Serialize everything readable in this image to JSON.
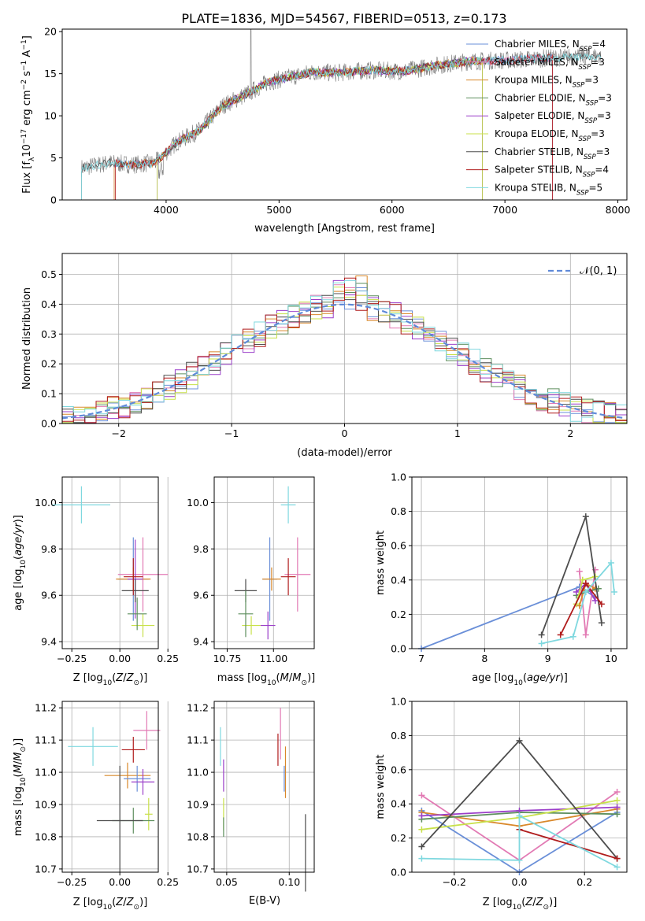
{
  "title": "PLATE=1836, MJD=54567, FIBERID=0513, z=0.173",
  "colors": {
    "chabrier_miles": "#6a8fd8",
    "salpeter_miles": "#e27ab4",
    "kroupa_miles": "#d9882a",
    "chabrier_elodie": "#5e8f5e",
    "salpeter_elodie": "#9b3fc9",
    "kroupa_elodie": "#c8e04a",
    "chabrier_stelib": "#4d4d4d",
    "salpeter_stelib": "#b01c1c",
    "kroupa_stelib": "#7fd8df",
    "spectrum": "#7a7a7a",
    "normal": "#5f8ad9"
  },
  "chart_data": [
    {
      "id": "spectrum",
      "type": "line",
      "xlabel": "wavelength [Angstrom, rest frame]",
      "ylabel": "Flux [fλ10⁻¹⁷ erg cm⁻² s⁻¹ A⁻¹]",
      "xlim": [
        3080,
        8080
      ],
      "ylim": [
        0,
        20.3
      ],
      "xticks": [
        "4000",
        "5000",
        "6000",
        "7000",
        "8000"
      ],
      "yticks": [
        "0",
        "5",
        "10",
        "15",
        "20"
      ],
      "legend_position": "top-right",
      "legend": [
        "Chabrier MILES, N_SSP=4",
        "Salpeter MILES, N_SSP=3",
        "Kroupa MILES, N_SSP=3",
        "Chabrier ELODIE, N_SSP=3",
        "Salpeter ELODIE, N_SSP=3",
        "Kroupa ELODIE, N_SSP=3",
        "Chabrier STELIB, N_SSP=3",
        "Salpeter STELIB, N_SSP=4",
        "Kroupa STELIB, N_SSP=5"
      ],
      "continuum_x": [
        3250,
        3500,
        3700,
        3900,
        4100,
        4300,
        4500,
        4700,
        4900,
        5100,
        5300,
        5500,
        5800,
        6100,
        6400,
        6700,
        7000,
        7300,
        7600,
        7850
      ],
      "continuum_y": [
        3.8,
        4.4,
        4.2,
        4.4,
        6.9,
        8.3,
        11.2,
        12.5,
        14.0,
        14.6,
        15.2,
        15.1,
        15.4,
        15.3,
        16.0,
        16.5,
        16.6,
        16.8,
        17.0,
        17.1
      ],
      "model_edges": {
        "salpeter_stelib": 3550,
        "kroupa_elodie": 3920,
        "chabrier_stelib": 4750,
        "kroupa_miles": 6800,
        "kroupa_elodie_red": 6800,
        "salpeter_stelib_red": 7420
      }
    },
    {
      "id": "residuals",
      "type": "histogram",
      "xlabel": "(data-model)/error",
      "ylabel": "Normed distribution",
      "xlim": [
        -2.5,
        2.5
      ],
      "ylim": [
        0,
        0.57
      ],
      "xticks": [
        "−2",
        "−1",
        "0",
        "1",
        "2"
      ],
      "yticks": [
        "0.0",
        "0.1",
        "0.2",
        "0.3",
        "0.4",
        "0.5"
      ],
      "legend": [
        "𝒩(0, 1)"
      ],
      "legend_position": "top-right",
      "bin_width": 0.1
    },
    {
      "id": "age_vs_Z",
      "type": "errorbar",
      "xlabel": "Z [log₁₀(Z/Z⊙)]",
      "ylabel": "age  [log₁₀(age/yr)]",
      "xlim": [
        -0.3,
        0.2
      ],
      "ylim": [
        9.37,
        10.11
      ],
      "xticks": [
        "−0.25",
        "0.00",
        "0.25"
      ],
      "yticks": [
        "9.4",
        "9.6",
        "9.8",
        "10.0"
      ],
      "points": [
        {
          "series": "kroupa_stelib",
          "x": -0.2,
          "y": 9.99,
          "xerr": 0.15,
          "yerr": 0.08
        },
        {
          "series": "chabrier_miles",
          "x": 0.07,
          "y": 9.67,
          "xerr": 0.08,
          "yerr": 0.18
        },
        {
          "series": "salpeter_miles",
          "x": 0.12,
          "y": 9.69,
          "xerr": 0.13,
          "yerr": 0.16
        },
        {
          "series": "kroupa_miles",
          "x": 0.07,
          "y": 9.67,
          "xerr": 0.09,
          "yerr": 0.05
        },
        {
          "series": "salpeter_elodie",
          "x": 0.08,
          "y": 9.67,
          "xerr": 0.04,
          "yerr": 0.17
        },
        {
          "series": "kroupa_elodie",
          "x": 0.12,
          "y": 9.47,
          "xerr": 0.06,
          "yerr": 0.05
        },
        {
          "series": "chabrier_stelib",
          "x": 0.08,
          "y": 9.62,
          "xerr": 0.07,
          "yerr": 0.05
        },
        {
          "series": "salpeter_stelib",
          "x": 0.07,
          "y": 9.68,
          "xerr": 0.05,
          "yerr": 0.08
        },
        {
          "series": "chabrier_elodie",
          "x": 0.09,
          "y": 9.52,
          "xerr": 0.05,
          "yerr": 0.07
        }
      ]
    },
    {
      "id": "age_vs_mass",
      "type": "errorbar",
      "xlabel": "mass [log₁₀(M/M⊙)]",
      "ylabel": "",
      "xlim": [
        10.68,
        11.22
      ],
      "ylim": [
        9.37,
        10.11
      ],
      "xticks": [
        "10.75",
        "11.00"
      ],
      "yticks": [
        "9.4",
        "9.6",
        "9.8",
        "10.0"
      ],
      "points": [
        {
          "series": "kroupa_stelib",
          "x": 11.08,
          "y": 9.99,
          "xerr": 0.04,
          "yerr": 0.08
        },
        {
          "series": "chabrier_miles",
          "x": 10.98,
          "y": 9.67,
          "xerr": 0.04,
          "yerr": 0.18
        },
        {
          "series": "salpeter_miles",
          "x": 11.13,
          "y": 9.69,
          "xerr": 0.07,
          "yerr": 0.16
        },
        {
          "series": "kroupa_miles",
          "x": 10.99,
          "y": 9.67,
          "xerr": 0.05,
          "yerr": 0.05
        },
        {
          "series": "salpeter_elodie",
          "x": 10.97,
          "y": 9.47,
          "xerr": 0.04,
          "yerr": 0.06
        },
        {
          "series": "kroupa_elodie",
          "x": 10.88,
          "y": 9.47,
          "xerr": 0.05,
          "yerr": 0.04
        },
        {
          "series": "chabrier_stelib",
          "x": 10.85,
          "y": 9.62,
          "xerr": 0.06,
          "yerr": 0.05
        },
        {
          "series": "salpeter_stelib",
          "x": 11.08,
          "y": 9.68,
          "xerr": 0.04,
          "yerr": 0.08
        },
        {
          "series": "chabrier_elodie",
          "x": 10.85,
          "y": 9.52,
          "xerr": 0.04,
          "yerr": 0.1
        }
      ]
    },
    {
      "id": "weight_vs_age",
      "type": "line",
      "xlabel": "age  [log₁₀(age/yr)]",
      "ylabel": "mass weight",
      "xlim": [
        6.85,
        10.25
      ],
      "ylim": [
        0,
        1.0
      ],
      "xticks": [
        "7",
        "8",
        "9",
        "10"
      ],
      "yticks": [
        "0.0",
        "0.2",
        "0.4",
        "0.6",
        "0.8",
        "1.0"
      ],
      "series": [
        {
          "series": "chabrier_miles",
          "x": [
            7.0,
            9.5,
            9.75
          ],
          "y": [
            0.0,
            0.36,
            0.3
          ]
        },
        {
          "series": "salpeter_miles",
          "x": [
            9.5,
            9.6,
            9.75
          ],
          "y": [
            0.45,
            0.08,
            0.46
          ]
        },
        {
          "series": "kroupa_miles",
          "x": [
            9.5,
            9.6,
            9.75
          ],
          "y": [
            0.25,
            0.38,
            0.35
          ]
        },
        {
          "series": "chabrier_elodie",
          "x": [
            9.45,
            9.6,
            9.8
          ],
          "y": [
            0.31,
            0.33,
            0.35
          ]
        },
        {
          "series": "salpeter_elodie",
          "x": [
            9.45,
            9.6,
            9.75
          ],
          "y": [
            0.33,
            0.38,
            0.28
          ]
        },
        {
          "series": "kroupa_elodie",
          "x": [
            9.45,
            9.55,
            9.75
          ],
          "y": [
            0.26,
            0.4,
            0.42
          ]
        },
        {
          "series": "chabrier_stelib",
          "x": [
            8.9,
            9.6,
            9.85
          ],
          "y": [
            0.08,
            0.77,
            0.15
          ]
        },
        {
          "series": "salpeter_stelib",
          "x": [
            9.2,
            9.6,
            9.85
          ],
          "y": [
            0.08,
            0.38,
            0.26
          ]
        },
        {
          "series": "kroupa_stelib",
          "x": [
            8.9,
            9.4,
            9.6,
            10.0,
            10.05
          ],
          "y": [
            0.03,
            0.07,
            0.33,
            0.5,
            0.33
          ]
        }
      ]
    },
    {
      "id": "mass_vs_Z",
      "type": "errorbar",
      "xlabel": "Z [log₁₀(Z/Z⊙)]",
      "ylabel": "mass [log₁₀(M/M⊙)]",
      "xlim": [
        -0.3,
        0.2
      ],
      "ylim": [
        10.69,
        11.22
      ],
      "xticks": [
        "−0.25",
        "0.00",
        "0.25"
      ],
      "yticks": [
        "10.7",
        "10.8",
        "10.9",
        "11.0",
        "11.1",
        "11.2"
      ],
      "points": [
        {
          "series": "kroupa_stelib",
          "x": -0.14,
          "y": 11.08,
          "xerr": 0.13,
          "yerr": 0.06
        },
        {
          "series": "salpeter_miles",
          "x": 0.14,
          "y": 11.13,
          "xerr": 0.07,
          "yerr": 0.06
        },
        {
          "series": "salpeter_stelib",
          "x": 0.07,
          "y": 11.07,
          "xerr": 0.06,
          "yerr": 0.04
        },
        {
          "series": "kroupa_miles",
          "x": 0.04,
          "y": 10.99,
          "xerr": 0.12,
          "yerr": 0.04
        },
        {
          "series": "chabrier_miles",
          "x": 0.09,
          "y": 10.98,
          "xerr": 0.07,
          "yerr": 0.04
        },
        {
          "series": "salpeter_elodie",
          "x": 0.12,
          "y": 10.97,
          "xerr": 0.06,
          "yerr": 0.04
        },
        {
          "series": "kroupa_elodie",
          "x": 0.15,
          "y": 10.87,
          "xerr": 0.02,
          "yerr": 0.05
        },
        {
          "series": "chabrier_elodie",
          "x": 0.07,
          "y": 10.85,
          "xerr": 0.11,
          "yerr": 0.04
        },
        {
          "series": "chabrier_stelib",
          "x": 0.0,
          "y": 10.85,
          "xerr": 0.12,
          "yerr": 0.17
        }
      ]
    },
    {
      "id": "mass_vs_ebv",
      "type": "errorbar",
      "xlabel": "E(B-V)",
      "ylabel": "",
      "xlim": [
        0.04,
        0.12
      ],
      "ylim": [
        10.69,
        11.22
      ],
      "xticks": [
        "0.05",
        "0.10"
      ],
      "yticks": [
        "10.7",
        "10.8",
        "10.9",
        "11.0",
        "11.1",
        "11.2"
      ],
      "points": [
        {
          "series": "kroupa_stelib",
          "x": 0.045,
          "y": 11.08,
          "xerr": 0,
          "yerr": 0.06
        },
        {
          "series": "salpeter_elodie",
          "x": 0.0475,
          "y": 10.99,
          "xerr": 0,
          "yerr": 0.05
        },
        {
          "series": "kroupa_elodie",
          "x": 0.0475,
          "y": 10.87,
          "xerr": 0,
          "yerr": 0.05
        },
        {
          "series": "chabrier_elodie",
          "x": 0.0475,
          "y": 10.83,
          "xerr": 0,
          "yerr": 0.03
        },
        {
          "series": "salpeter_miles",
          "x": 0.093,
          "y": 11.12,
          "xerr": 0,
          "yerr": 0.08
        },
        {
          "series": "salpeter_stelib",
          "x": 0.091,
          "y": 11.07,
          "xerr": 0,
          "yerr": 0.05
        },
        {
          "series": "kroupa_miles",
          "x": 0.097,
          "y": 11.0,
          "xerr": 0,
          "yerr": 0.08
        },
        {
          "series": "chabrier_miles",
          "x": 0.096,
          "y": 10.98,
          "xerr": 0,
          "yerr": 0.04
        },
        {
          "series": "chabrier_stelib",
          "x": 0.113,
          "y": 10.75,
          "xerr": 0,
          "yerr": 0.12
        }
      ]
    },
    {
      "id": "weight_vs_Z",
      "type": "line",
      "xlabel": "Z [log₁₀(Z/Z⊙)]",
      "ylabel": "mass weight",
      "xlim": [
        -0.33,
        0.33
      ],
      "ylim": [
        0,
        1.0
      ],
      "xticks": [
        "−0.2",
        "0.0",
        "0.2"
      ],
      "yticks": [
        "0.0",
        "0.2",
        "0.4",
        "0.6",
        "0.8",
        "1.0"
      ],
      "series": [
        {
          "series": "chabrier_miles",
          "x": [
            -0.3,
            0.0,
            0.3
          ],
          "y": [
            0.36,
            0.0,
            0.35
          ]
        },
        {
          "series": "salpeter_miles",
          "x": [
            -0.3,
            0.0,
            0.3
          ],
          "y": [
            0.45,
            0.07,
            0.47
          ]
        },
        {
          "series": "kroupa_miles",
          "x": [
            -0.3,
            0.0,
            0.3
          ],
          "y": [
            0.35,
            0.27,
            0.37
          ]
        },
        {
          "series": "chabrier_elodie",
          "x": [
            -0.3,
            0.0,
            0.3
          ],
          "y": [
            0.31,
            0.35,
            0.34
          ]
        },
        {
          "series": "salpeter_elodie",
          "x": [
            -0.3,
            0.0,
            0.3
          ],
          "y": [
            0.33,
            0.36,
            0.38
          ]
        },
        {
          "series": "kroupa_elodie",
          "x": [
            -0.3,
            0.0,
            0.3
          ],
          "y": [
            0.25,
            0.32,
            0.42
          ]
        },
        {
          "series": "chabrier_stelib",
          "x": [
            -0.3,
            0.0,
            0.3
          ],
          "y": [
            0.15,
            0.77,
            0.08
          ]
        },
        {
          "series": "salpeter_stelib",
          "x": [
            0.0,
            0.3
          ],
          "y": [
            0.25,
            0.08
          ]
        },
        {
          "series": "kroupa_stelib",
          "x": [
            -0.3,
            0.0,
            0.0,
            0.3
          ],
          "y": [
            0.08,
            0.07,
            0.33,
            0.03
          ]
        }
      ]
    }
  ]
}
